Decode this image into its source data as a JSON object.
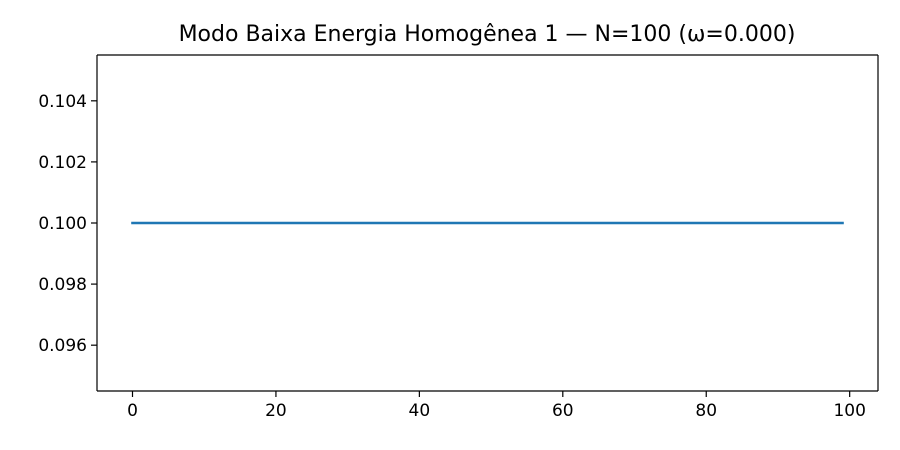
{
  "chart_data": {
    "type": "line",
    "title": "Modo Baixa Energia Homogênea 1 — N=100 (ω=0.000)",
    "xlabel": "",
    "ylabel": "",
    "xlim": [
      -4.95,
      103.95
    ],
    "ylim": [
      0.0945,
      0.1055
    ],
    "x_ticks": [
      0,
      20,
      40,
      60,
      80,
      100
    ],
    "x_tick_labels": [
      "0",
      "20",
      "40",
      "60",
      "80",
      "100"
    ],
    "y_ticks": [
      0.096,
      0.098,
      0.1,
      0.102,
      0.104
    ],
    "y_tick_labels": [
      "0.096",
      "0.098",
      "0.100",
      "0.102",
      "0.104"
    ],
    "grid": false,
    "legend": "none",
    "series": [
      {
        "color": "#1f77b4",
        "x_start": 0,
        "x_end": 99,
        "x_step": 1,
        "constant_y": 0.1
      }
    ]
  }
}
